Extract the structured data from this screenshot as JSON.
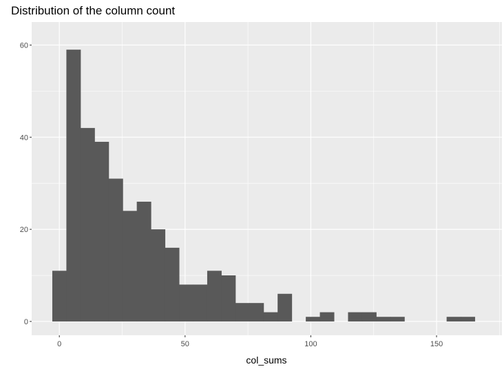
{
  "chart_data": {
    "type": "bar",
    "title": "Distribution of the column count",
    "xlabel": "col_sums",
    "ylabel": "",
    "bin_width": 5.6,
    "bins": [
      {
        "start": -2.8,
        "end": 2.8,
        "count": 11
      },
      {
        "start": 2.8,
        "end": 8.4,
        "count": 59
      },
      {
        "start": 8.4,
        "end": 14.0,
        "count": 42
      },
      {
        "start": 14.0,
        "end": 19.6,
        "count": 39
      },
      {
        "start": 19.6,
        "end": 25.2,
        "count": 31
      },
      {
        "start": 25.2,
        "end": 30.8,
        "count": 24
      },
      {
        "start": 30.8,
        "end": 36.4,
        "count": 26
      },
      {
        "start": 36.4,
        "end": 42.0,
        "count": 20
      },
      {
        "start": 42.0,
        "end": 47.6,
        "count": 16
      },
      {
        "start": 47.6,
        "end": 53.2,
        "count": 8
      },
      {
        "start": 53.2,
        "end": 58.8,
        "count": 8
      },
      {
        "start": 58.8,
        "end": 64.4,
        "count": 11
      },
      {
        "start": 64.4,
        "end": 70.0,
        "count": 10
      },
      {
        "start": 70.0,
        "end": 75.6,
        "count": 4
      },
      {
        "start": 75.6,
        "end": 81.2,
        "count": 4
      },
      {
        "start": 81.2,
        "end": 86.8,
        "count": 2
      },
      {
        "start": 86.8,
        "end": 92.4,
        "count": 6
      },
      {
        "start": 92.4,
        "end": 98.0,
        "count": 0
      },
      {
        "start": 98.0,
        "end": 103.6,
        "count": 1
      },
      {
        "start": 103.6,
        "end": 109.2,
        "count": 2
      },
      {
        "start": 109.2,
        "end": 114.8,
        "count": 0
      },
      {
        "start": 114.8,
        "end": 120.4,
        "count": 2
      },
      {
        "start": 120.4,
        "end": 126.0,
        "count": 2
      },
      {
        "start": 126.0,
        "end": 131.6,
        "count": 1
      },
      {
        "start": 131.6,
        "end": 137.2,
        "count": 1
      },
      {
        "start": 137.2,
        "end": 142.8,
        "count": 0
      },
      {
        "start": 142.8,
        "end": 148.4,
        "count": 0
      },
      {
        "start": 148.4,
        "end": 154.0,
        "count": 0
      },
      {
        "start": 154.0,
        "end": 159.6,
        "count": 1
      },
      {
        "start": 159.6,
        "end": 165.2,
        "count": 1
      }
    ],
    "xlim": [
      -11,
      176
    ],
    "ylim": [
      -3,
      65
    ],
    "x_ticks": [
      0,
      50,
      100,
      150
    ],
    "y_ticks": [
      0,
      20,
      40,
      60
    ],
    "grid": true,
    "colors": {
      "bar": "#595959",
      "panel_background": "#ebebeb",
      "grid": "#ffffff",
      "tick_text": "#4d4d4d"
    }
  }
}
